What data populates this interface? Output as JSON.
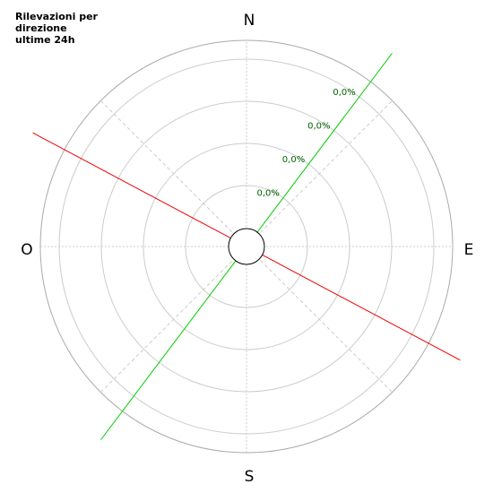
{
  "chart_data": {
    "type": "radar",
    "title_lines": [
      "Rilevazioni per",
      "direzione",
      "ultime 24h"
    ],
    "directions": [
      "N",
      "E",
      "S",
      "O"
    ],
    "ring_labels": [
      "0,0%",
      "0,0%",
      "0,0%",
      "0,0%"
    ],
    "grid": true,
    "series": [
      {
        "color": "#00cc00",
        "bearing_deg": 37
      },
      {
        "color": "#ee0000",
        "bearing_deg": 118
      }
    ],
    "colors": {
      "grid_ring": "#cccccc",
      "outer_ring": "#aaaaaa",
      "axis": "#cccccc",
      "diagonal": "#cccccc",
      "ring_label": "#006600"
    }
  }
}
